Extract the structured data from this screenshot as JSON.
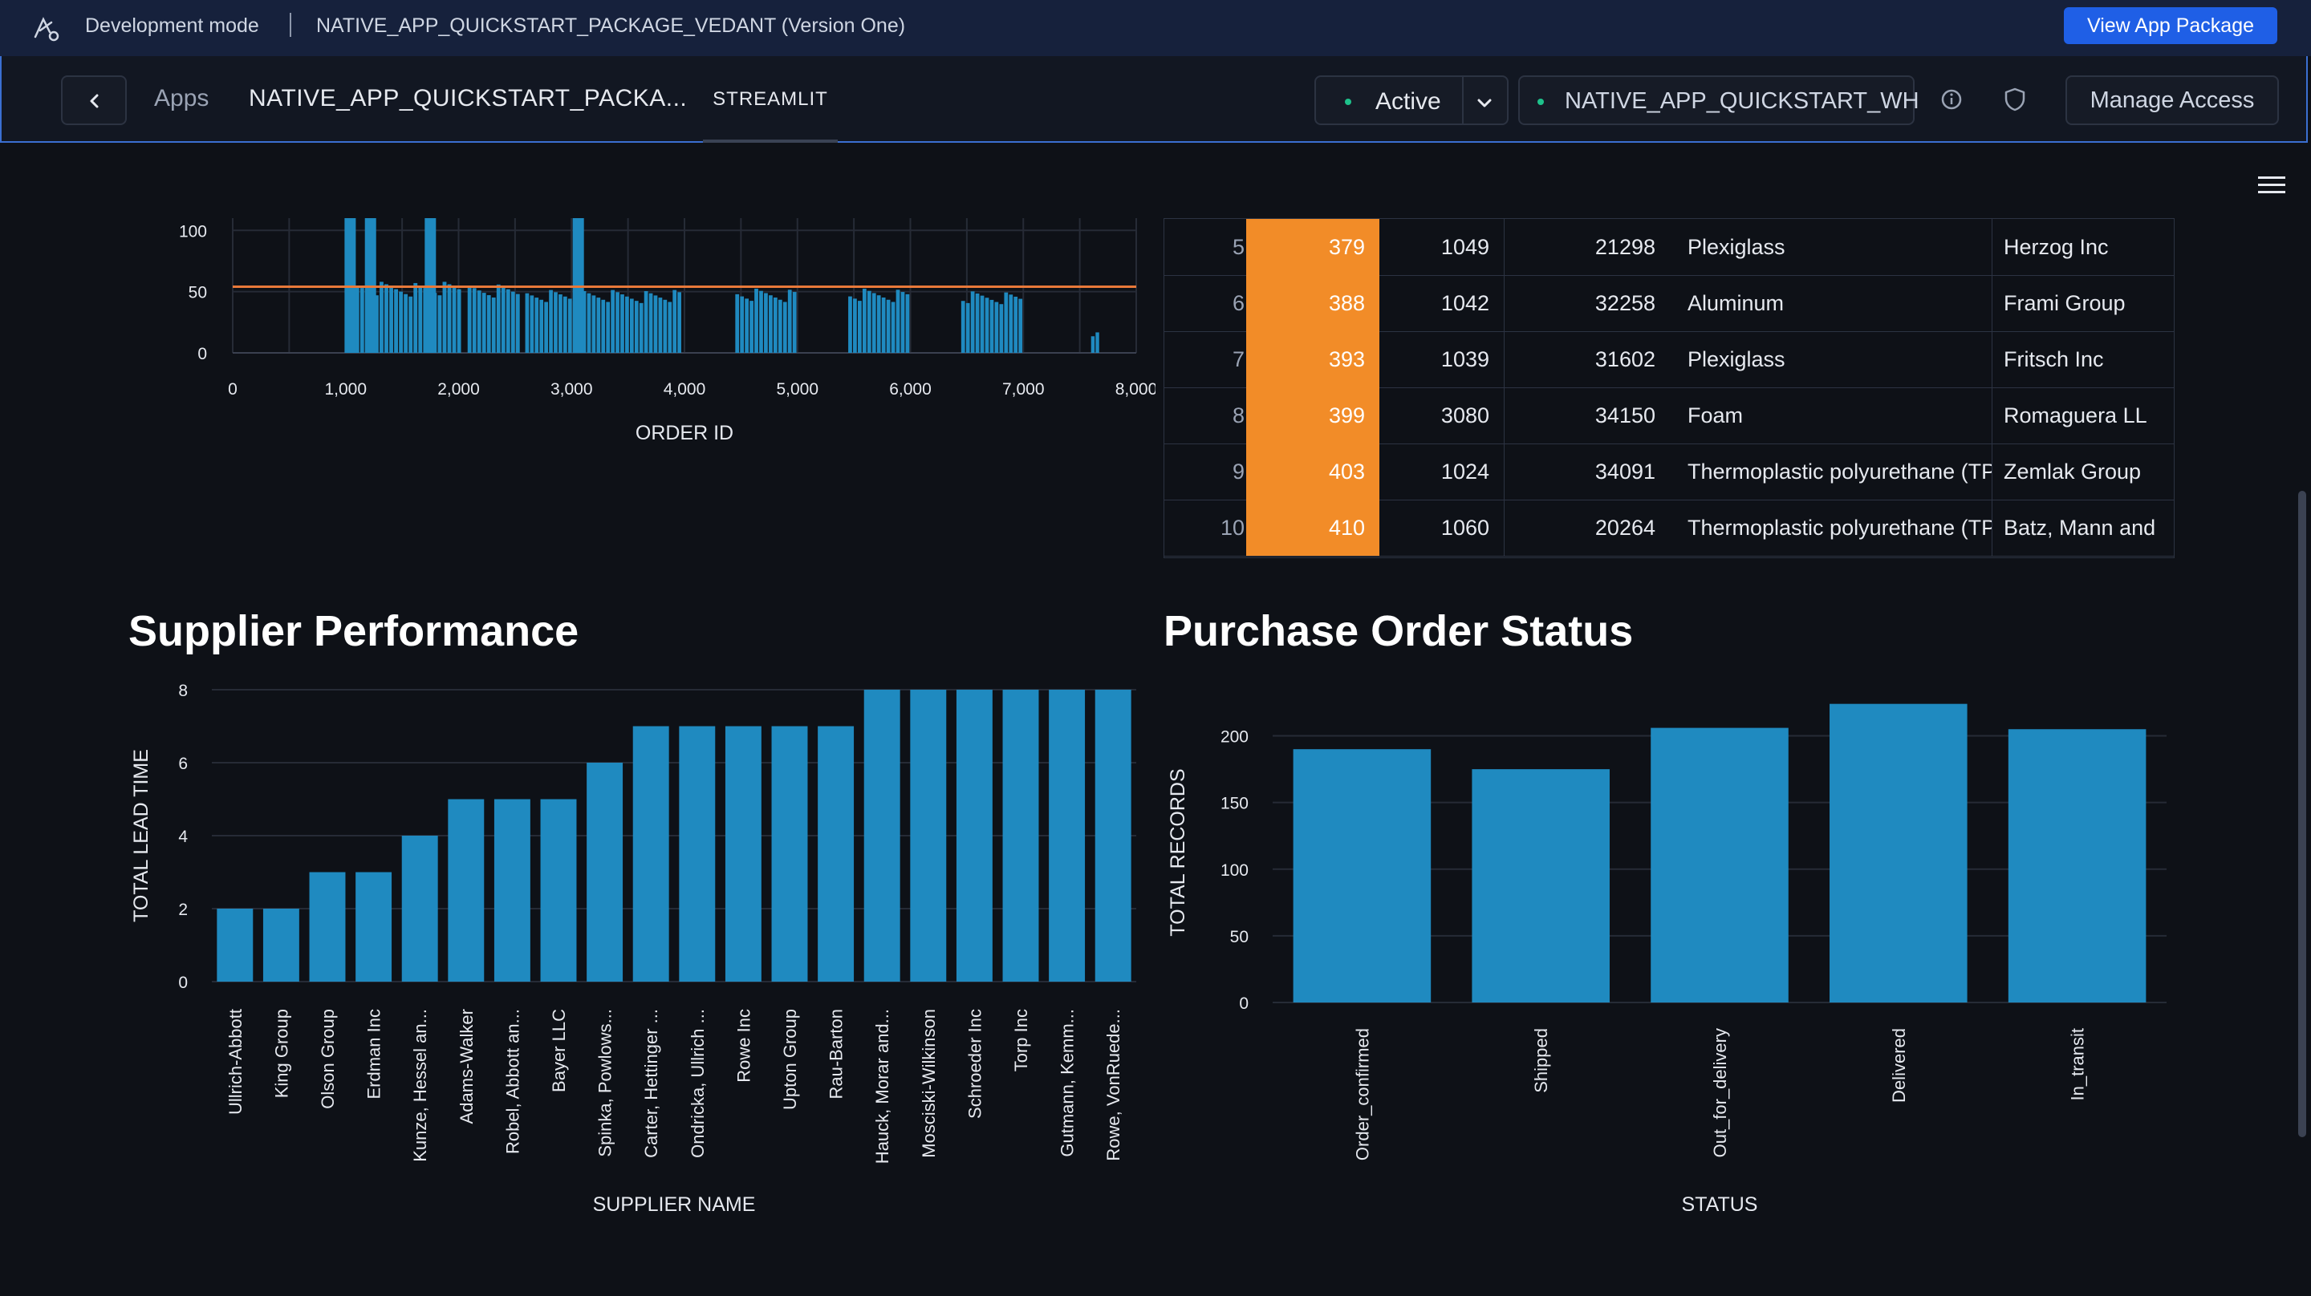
{
  "devbar": {
    "mode": "Development mode",
    "package": "NATIVE_APP_QUICKSTART_PACKAGE_VEDANT (Version One)",
    "view_button": "View App Package"
  },
  "header": {
    "apps": "Apps",
    "title": "NATIVE_APP_QUICKSTART_PACKA...",
    "tab": "STREAMLIT",
    "status": "Active",
    "warehouse": "NATIVE_APP_QUICKSTART_WH",
    "manage": "Manage Access"
  },
  "colors": {
    "bar": "#1f8ac0",
    "highlight": "#f28c28",
    "rule": "#e8793a",
    "accent": "#1f5fe6",
    "background": "#0e1117"
  },
  "table": {
    "rows": [
      {
        "idx": "5",
        "a": "379",
        "b": "1049",
        "c": "21298",
        "d": "Plexiglass",
        "e": "Herzog Inc"
      },
      {
        "idx": "6",
        "a": "388",
        "b": "1042",
        "c": "32258",
        "d": "Aluminum",
        "e": "Frami Group"
      },
      {
        "idx": "7",
        "a": "393",
        "b": "1039",
        "c": "31602",
        "d": "Plexiglass",
        "e": "Fritsch Inc"
      },
      {
        "idx": "8",
        "a": "399",
        "b": "3080",
        "c": "34150",
        "d": "Foam",
        "e": "Romaguera LL"
      },
      {
        "idx": "9",
        "a": "403",
        "b": "1024",
        "c": "34091",
        "d": "Thermoplastic polyurethane (TPU)",
        "e": "Zemlak Group"
      },
      {
        "idx": "10",
        "a": "410",
        "b": "1060",
        "c": "20264",
        "d": "Thermoplastic polyurethane (TPU)",
        "e": "Batz, Mann and"
      }
    ]
  },
  "sections": {
    "supplier_title": "Supplier Performance",
    "status_title": "Purchase Order Status"
  },
  "chart_data": [
    {
      "type": "bar",
      "xlabel": "ORDER ID",
      "ylabel": "",
      "xlim": [
        0,
        8000
      ],
      "ylim": [
        0,
        110
      ],
      "x_ticks": [
        "0",
        "1,000",
        "2,000",
        "3,000",
        "4,000",
        "5,000",
        "6,000",
        "7,000",
        "8,000"
      ],
      "y_ticks": [
        "0",
        "50",
        "100"
      ],
      "reference_line": 54,
      "groups": [
        {
          "x_start": 1000,
          "x_end": 2030,
          "value": 52
        },
        {
          "x_start": 2080,
          "x_end": 2550,
          "value": 50
        },
        {
          "x_start": 2590,
          "x_end": 3980,
          "value": 46
        },
        {
          "x_start": 4450,
          "x_end": 5000,
          "value": 47
        },
        {
          "x_start": 5450,
          "x_end": 6000,
          "value": 47
        },
        {
          "x_start": 6450,
          "x_end": 7000,
          "value": 45
        },
        {
          "x_start": 7600,
          "x_end": 7680,
          "value": 15
        }
      ],
      "spikes": [
        {
          "x": 1040,
          "value": 110
        },
        {
          "x": 1220,
          "value": 110
        },
        {
          "x": 1750,
          "value": 110
        },
        {
          "x": 3060,
          "value": 110
        }
      ]
    },
    {
      "type": "bar",
      "title": "Supplier Performance",
      "xlabel": "SUPPLIER NAME",
      "ylabel": "TOTAL LEAD TIME",
      "ylim": [
        0,
        8
      ],
      "y_ticks": [
        "0",
        "2",
        "4",
        "6",
        "8"
      ],
      "categories": [
        "Ullrich-Abbott",
        "King Group",
        "Olson Group",
        "Erdman Inc",
        "Kunze, Hessel an...",
        "Adams-Walker",
        "Robel, Abbott an...",
        "Bayer LLC",
        "Spinka, Powlows...",
        "Carter, Hettinger ...",
        "Ondricka, Ullrich ...",
        "Rowe Inc",
        "Upton Group",
        "Rau-Barton",
        "Hauck, Morar and...",
        "Mosciski-Wilkinson",
        "Schroeder Inc",
        "Torp Inc",
        "Gutmann, Kemm...",
        "Rowe, VonRuede..."
      ],
      "values": [
        2,
        2,
        3,
        3,
        4,
        5,
        5,
        5,
        6,
        7,
        7,
        7,
        7,
        7,
        8,
        8,
        8,
        8,
        8,
        8
      ]
    },
    {
      "type": "bar",
      "title": "Purchase Order Status",
      "xlabel": "STATUS",
      "ylabel": "TOTAL RECORDS",
      "ylim": [
        0,
        225
      ],
      "y_ticks": [
        "0",
        "50",
        "100",
        "150",
        "200"
      ],
      "categories": [
        "Order_confirmed",
        "Shipped",
        "Out_for_delivery",
        "Delivered",
        "In_transit"
      ],
      "values": [
        190,
        175,
        206,
        224,
        205
      ]
    }
  ]
}
